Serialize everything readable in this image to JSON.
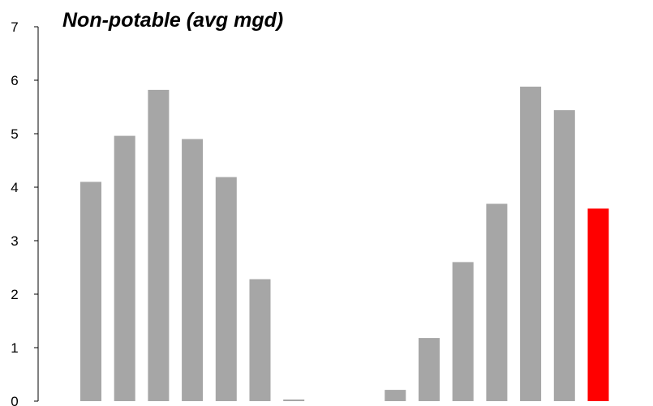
{
  "chart_data": {
    "type": "bar",
    "title": "Non-potable (avg mgd)",
    "xlabel": "",
    "ylabel": "",
    "ylim": [
      0,
      7
    ],
    "yticks": [
      0,
      1,
      2,
      3,
      4,
      5,
      6,
      7
    ],
    "grid": false,
    "legend": "none",
    "values": [
      4.1,
      4.96,
      5.82,
      4.9,
      4.19,
      2.28,
      0.03,
      0,
      0,
      0.21,
      1.18,
      2.6,
      3.69,
      5.88,
      5.44,
      3.6
    ],
    "bar_colors": [
      "#a6a6a6",
      "#a6a6a6",
      "#a6a6a6",
      "#a6a6a6",
      "#a6a6a6",
      "#a6a6a6",
      "#a6a6a6",
      "#a6a6a6",
      "#a6a6a6",
      "#a6a6a6",
      "#a6a6a6",
      "#a6a6a6",
      "#a6a6a6",
      "#a6a6a6",
      "#a6a6a6",
      "#ff0000"
    ]
  }
}
